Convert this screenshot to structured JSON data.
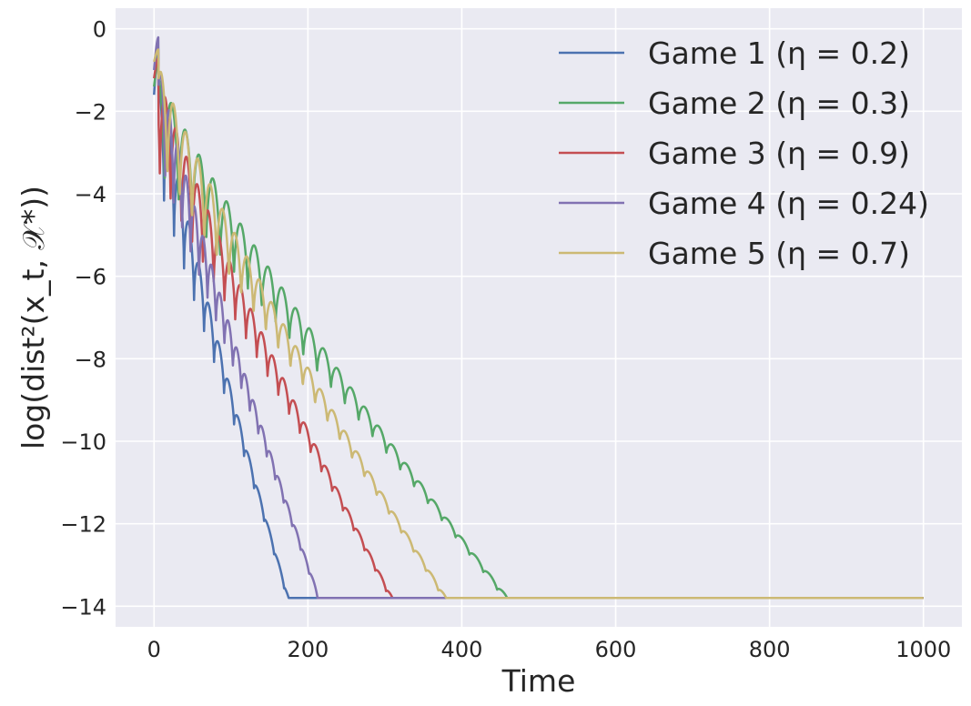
{
  "chart_data": {
    "type": "line",
    "title": "",
    "xlabel": "Time",
    "ylabel": "log(dist²(x_t, 𝒳*))",
    "xlim": [
      -50,
      1050
    ],
    "ylim": [
      -14.5,
      0.5
    ],
    "xticks": [
      0,
      200,
      400,
      600,
      800,
      1000
    ],
    "yticks": [
      0,
      -2,
      -4,
      -6,
      -8,
      -10,
      -12,
      -14
    ],
    "xtick_labels": [
      "0",
      "200",
      "400",
      "600",
      "800",
      "1000"
    ],
    "ytick_labels": [
      "0",
      "−2",
      "−4",
      "−6",
      "−8",
      "−10",
      "−12",
      "−14"
    ],
    "grid": true,
    "legend_position": "top-right",
    "floor": -13.8,
    "series": [
      {
        "name": "Game 1 (η = 0.2)",
        "color": "#4c72b0",
        "start": -1.6,
        "peak": -0.5,
        "x_floor": 175,
        "period": 13
      },
      {
        "name": "Game 2 (η = 0.3)",
        "color": "#55a868",
        "start": -1.4,
        "peak": -0.8,
        "x_floor": 460,
        "period": 18
      },
      {
        "name": "Game 3 (η = 0.9)",
        "color": "#c44e52",
        "start": -1.2,
        "peak": -0.7,
        "x_floor": 310,
        "period": 14
      },
      {
        "name": "Game 4 (η = 0.24)",
        "color": "#8172b2",
        "start": -1.0,
        "peak": -0.2,
        "x_floor": 215,
        "period": 11
      },
      {
        "name": "Game 5 (η = 0.7)",
        "color": "#ccb974",
        "start": -0.8,
        "peak": -0.5,
        "x_floor": 380,
        "period": 16
      }
    ]
  }
}
